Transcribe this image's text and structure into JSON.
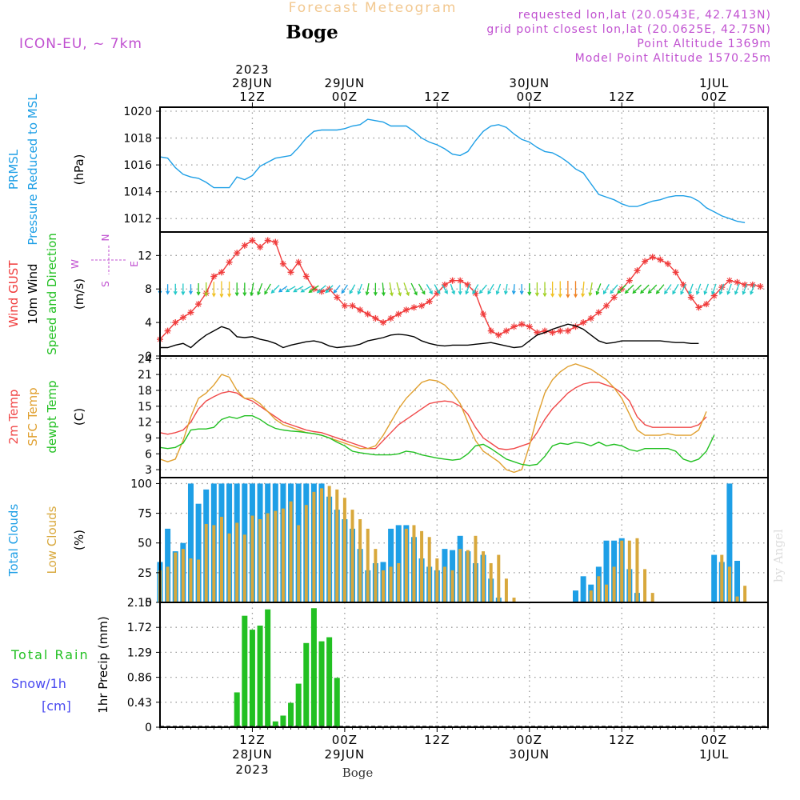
{
  "header": {
    "supertitle": "Forecast Meteogram",
    "location": "Boge",
    "model": "ICON-EU, ~ 7km",
    "requested": "requested lon,lat (20.0543E, 42.7413N)",
    "gridpoint": "grid point closest lon,lat (20.0625E, 42.75N)",
    "point_altitude": "Point Altitude 1369m",
    "model_altitude": "Model Point Altitude 1570.25m",
    "watermark": "by Angel",
    "footer": "Boge"
  },
  "colors": {
    "pressure": "#1e9fe6",
    "gust": "#f03c3c",
    "wind": "#000000",
    "temp2m": "#f04848",
    "sfc": "#e0a030",
    "dewpt": "#22c022",
    "total_clouds": "#1e9fe6",
    "low_clouds": "#d8a83c",
    "rain": "#22c022",
    "snow": "#4a4af0",
    "grid": "#9a9a9a",
    "axis_labels_purple": "#c050d0"
  },
  "time_axis": {
    "start_hour": 0,
    "end_hour": 79,
    "ticks": [
      {
        "h": 12,
        "top": "12Z",
        "date": "28JUN",
        "year": "2023"
      },
      {
        "h": 24,
        "top": "00Z",
        "date": "29JUN",
        "year": ""
      },
      {
        "h": 36,
        "top": "12Z",
        "date": "",
        "year": ""
      },
      {
        "h": 48,
        "top": "00Z",
        "date": "30JUN",
        "year": ""
      },
      {
        "h": 60,
        "top": "12Z",
        "date": "",
        "year": ""
      },
      {
        "h": 72,
        "top": "00Z",
        "date": "1JUL",
        "year": ""
      }
    ]
  },
  "compass": {
    "n": "N",
    "s": "S",
    "w": "W",
    "e": "E"
  },
  "chart_data": [
    {
      "type": "line",
      "name": "pressure",
      "title": "PRMSL Pressure Reduced to MSL",
      "ylabel_lines": [
        "PRMSL",
        "Pressure Reduced to MSL"
      ],
      "unit": "(hPa)",
      "ylim": [
        1011,
        1020.3
      ],
      "yticks": [
        1012,
        1014,
        1016,
        1018,
        1020
      ],
      "series": [
        {
          "name": "PRMSL",
          "x_start_hour": 0,
          "x_step_hour": 1,
          "values": [
            1016.6,
            1016.5,
            1015.8,
            1015.3,
            1015.1,
            1015.0,
            1014.7,
            1014.3,
            1014.3,
            1014.3,
            1015.1,
            1014.9,
            1015.2,
            1015.9,
            1016.2,
            1016.5,
            1016.6,
            1016.7,
            1017.3,
            1018.0,
            1018.5,
            1018.6,
            1018.6,
            1018.6,
            1018.7,
            1018.9,
            1019.0,
            1019.4,
            1019.3,
            1019.2,
            1018.9,
            1018.9,
            1018.9,
            1018.5,
            1018.0,
            1017.7,
            1017.5,
            1017.2,
            1016.8,
            1016.7,
            1017.0,
            1017.8,
            1018.5,
            1018.9,
            1019.0,
            1018.8,
            1018.3,
            1017.9,
            1017.7,
            1017.3,
            1017.0,
            1016.9,
            1016.6,
            1016.2,
            1015.7,
            1015.4,
            1014.6,
            1013.8,
            1013.6,
            1013.4,
            1013.1,
            1012.9,
            1012.9,
            1013.1,
            1013.3,
            1013.4,
            1013.6,
            1013.7,
            1013.7,
            1013.6,
            1013.3,
            1012.8,
            1012.5,
            1012.2,
            1012.0,
            1011.8,
            1011.7
          ]
        }
      ]
    },
    {
      "type": "line",
      "name": "wind",
      "title": "Wind GUST 10m Wind Speed and Direction",
      "ylabel_lines": [
        "Wind GUST",
        "10m Wind",
        "Speed and Direction"
      ],
      "unit": "(m/s)",
      "ylim": [
        0,
        14.8
      ],
      "yticks": [
        0,
        4,
        8,
        12
      ],
      "series": [
        {
          "name": "Wind GUST",
          "x_start_hour": 0,
          "x_step_hour": 1,
          "values": [
            2.0,
            3.0,
            4.0,
            4.6,
            5.2,
            6.2,
            7.5,
            9.5,
            10.0,
            11.2,
            12.3,
            13.2,
            13.8,
            13.0,
            13.8,
            13.6,
            11.0,
            10.0,
            11.2,
            9.5,
            8.0,
            7.7,
            8.0,
            7.0,
            6.0,
            6.0,
            5.5,
            5.0,
            4.5,
            4.0,
            4.5,
            5.0,
            5.5,
            5.8,
            6.0,
            6.5,
            7.5,
            8.5,
            9.0,
            9.0,
            8.5,
            7.5,
            5.0,
            3.0,
            2.5,
            3.0,
            3.5,
            3.8,
            3.5,
            2.8,
            3.0,
            2.8,
            3.0,
            3.0,
            3.5,
            4.0,
            4.5,
            5.2,
            6.0,
            7.0,
            8.0,
            9.0,
            10.2,
            11.3,
            11.8,
            11.5,
            11.0,
            10.0,
            8.5,
            7.0,
            5.8,
            6.2,
            7.2,
            8.2,
            9.0,
            8.8,
            8.5,
            8.5,
            8.3
          ]
        },
        {
          "name": "10m Wind",
          "x_start_hour": 0,
          "x_step_hour": 1,
          "values": [
            1.0,
            1.0,
            1.3,
            1.5,
            1.0,
            1.8,
            2.5,
            3.0,
            3.5,
            3.2,
            2.3,
            2.2,
            2.3,
            2.0,
            1.8,
            1.5,
            1.0,
            1.3,
            1.5,
            1.7,
            1.8,
            1.6,
            1.2,
            1.0,
            1.1,
            1.2,
            1.4,
            1.8,
            2.0,
            2.2,
            2.5,
            2.6,
            2.5,
            2.3,
            1.8,
            1.5,
            1.3,
            1.2,
            1.3,
            1.3,
            1.3,
            1.4,
            1.5,
            1.6,
            1.4,
            1.2,
            1.0,
            1.1,
            1.8,
            2.5,
            2.8,
            3.2,
            3.5,
            3.8,
            3.6,
            3.2,
            2.5,
            1.8,
            1.5,
            1.6,
            1.8,
            1.8,
            1.8,
            1.8,
            1.8,
            1.8,
            1.7,
            1.6,
            1.6,
            1.5,
            1.5
          ]
        }
      ],
      "arrow_row_y": 8,
      "wind_direction_deg": [
        180,
        180,
        180,
        180,
        180,
        180,
        180,
        180,
        180,
        180,
        180,
        180,
        190,
        200,
        210,
        225,
        235,
        240,
        240,
        240,
        235,
        230,
        225,
        220,
        215,
        210,
        200,
        190,
        180,
        175,
        170,
        165,
        160,
        155,
        150,
        150,
        150,
        150,
        160,
        180,
        200,
        210,
        220,
        210,
        200,
        190,
        185,
        180,
        180,
        180,
        180,
        180,
        180,
        180,
        180,
        185,
        190,
        200,
        210,
        220,
        225,
        225,
        225,
        225,
        225,
        220,
        215,
        210,
        205,
        200,
        200,
        200,
        200,
        200,
        200,
        200,
        200,
        200
      ]
    },
    {
      "type": "line",
      "name": "temperature",
      "title": "2m Temp SFC Temp dewpt Temp",
      "ylabel_lines": [
        "2m Temp",
        "SFC Temp",
        "dewpt Temp"
      ],
      "unit": "(C)",
      "ylim": [
        1.5,
        24.5
      ],
      "yticks": [
        3,
        6,
        9,
        12,
        15,
        18,
        21,
        24
      ],
      "series": [
        {
          "name": "2m Temp",
          "x_start_hour": 0,
          "x_step_hour": 1,
          "values": [
            10.0,
            9.7,
            10.0,
            10.5,
            12.0,
            14.5,
            16.0,
            16.8,
            17.5,
            17.8,
            17.5,
            16.5,
            16.0,
            15.0,
            14.0,
            13.0,
            12.0,
            11.5,
            11.0,
            10.5,
            10.2,
            10.0,
            9.5,
            9.0,
            8.5,
            8.0,
            7.5,
            7.0,
            7.0,
            8.5,
            10.0,
            11.5,
            12.5,
            13.5,
            14.5,
            15.5,
            15.8,
            16.0,
            15.8,
            15.0,
            13.5,
            11.0,
            9.0,
            8.0,
            7.0,
            6.8,
            7.0,
            7.5,
            8.0,
            10.0,
            12.5,
            14.5,
            16.0,
            17.5,
            18.5,
            19.2,
            19.5,
            19.5,
            19.0,
            18.5,
            17.5,
            16.0,
            13.0,
            11.5,
            11.0,
            11.0,
            11.0,
            11.0,
            11.0,
            11.0,
            11.5,
            13.0
          ]
        },
        {
          "name": "SFC Temp",
          "x_start_hour": 0,
          "x_step_hour": 1,
          "values": [
            5.0,
            4.5,
            5.0,
            8.5,
            13.0,
            16.5,
            17.5,
            19.0,
            21.0,
            20.5,
            18.0,
            16.5,
            16.5,
            15.5,
            14.0,
            12.5,
            11.5,
            11.0,
            10.5,
            10.0,
            9.8,
            9.5,
            9.0,
            8.5,
            8.0,
            7.5,
            7.0,
            7.0,
            7.5,
            9.5,
            12.0,
            14.5,
            16.5,
            18.0,
            19.5,
            20.0,
            19.8,
            19.0,
            17.5,
            15.5,
            12.0,
            8.5,
            6.5,
            5.5,
            4.5,
            3.0,
            2.5,
            3.0,
            7.5,
            13.0,
            17.5,
            20.0,
            21.5,
            22.5,
            23.0,
            22.5,
            22.0,
            21.0,
            20.0,
            18.5,
            16.5,
            13.5,
            10.5,
            9.5,
            9.5,
            9.5,
            9.8,
            9.5,
            9.5,
            9.5,
            10.5,
            14.0
          ]
        },
        {
          "name": "dewpt Temp",
          "x_start_hour": 0,
          "x_step_hour": 1,
          "values": [
            7.2,
            7.0,
            7.2,
            8.0,
            10.5,
            10.7,
            10.7,
            11.0,
            12.5,
            13.0,
            12.7,
            13.2,
            13.2,
            12.5,
            11.5,
            10.8,
            10.5,
            10.3,
            10.2,
            10.0,
            9.8,
            9.5,
            9.0,
            8.2,
            7.5,
            6.5,
            6.2,
            6.0,
            5.8,
            5.8,
            5.8,
            6.0,
            6.5,
            6.3,
            5.8,
            5.5,
            5.2,
            5.0,
            4.8,
            5.0,
            6.0,
            7.5,
            7.8,
            7.0,
            6.0,
            5.0,
            4.5,
            4.0,
            3.8,
            4.0,
            5.5,
            7.5,
            8.0,
            7.8,
            8.2,
            8.0,
            7.5,
            8.2,
            7.5,
            7.8,
            7.5,
            6.8,
            6.5,
            7.0,
            7.0,
            7.0,
            7.0,
            6.5,
            5.0,
            4.5,
            5.0,
            6.5,
            9.5
          ]
        }
      ]
    },
    {
      "type": "bar",
      "name": "clouds",
      "title": "Total Clouds Low Clouds",
      "ylabel_lines": [
        "Total Clouds",
        "Low Clouds"
      ],
      "unit": "(%)",
      "ylim": [
        0,
        105
      ],
      "yticks": [
        0,
        25,
        50,
        75,
        100
      ],
      "series": [
        {
          "name": "Total Clouds",
          "x_start_hour": 0,
          "x_step_hour": 1,
          "values": [
            34,
            62,
            43,
            50,
            100,
            83,
            95,
            100,
            100,
            100,
            100,
            100,
            100,
            100,
            100,
            100,
            100,
            100,
            100,
            100,
            100,
            100,
            89,
            78,
            70,
            62,
            45,
            27,
            33,
            34,
            62,
            65,
            65,
            55,
            37,
            30,
            27,
            45,
            44,
            56,
            43,
            33,
            40,
            20,
            4,
            0,
            0,
            0,
            0,
            0,
            0,
            0,
            0,
            0,
            10,
            22,
            15,
            30,
            52,
            52,
            54,
            28,
            8,
            0,
            0,
            0,
            0,
            0,
            0,
            0,
            0,
            0,
            40,
            34,
            100,
            35
          ]
        },
        {
          "name": "Low Clouds",
          "x_start_hour": 0,
          "x_step_hour": 1,
          "values": [
            27,
            30,
            42,
            45,
            37,
            36,
            66,
            65,
            72,
            58,
            67,
            57,
            73,
            70,
            75,
            77,
            79,
            85,
            65,
            82,
            93,
            96,
            98,
            95,
            88,
            78,
            70,
            62,
            45,
            27,
            30,
            33,
            62,
            65,
            60,
            55,
            37,
            30,
            27,
            45,
            44,
            56,
            43,
            33,
            40,
            20,
            4,
            0,
            0,
            0,
            0,
            0,
            0,
            0,
            0,
            0,
            10,
            22,
            15,
            30,
            52,
            52,
            54,
            28,
            8,
            0,
            0,
            0,
            0,
            0,
            0,
            0,
            0,
            40,
            30,
            5,
            14
          ]
        }
      ]
    },
    {
      "type": "bar",
      "name": "precip",
      "title": "1hr Precip (mm)",
      "ylabel_lines": [
        "1hr Precip (mm)"
      ],
      "side_labels": [
        "Total Rain",
        "Snow/1h",
        "[cm]"
      ],
      "ylim": [
        0,
        2.15
      ],
      "yticks": [
        0,
        0.43,
        0.86,
        1.29,
        1.72,
        2.15
      ],
      "ytick_labels": [
        "0",
        "0.43",
        "0.86",
        "1.29",
        "1.72",
        "2.15"
      ],
      "series": [
        {
          "name": "Total Rain",
          "x_start_hour": 0,
          "x_step_hour": 1,
          "values": [
            0,
            0,
            0,
            0,
            0,
            0,
            0,
            0,
            0,
            0.01,
            0.6,
            1.92,
            1.68,
            1.75,
            2.03,
            0.1,
            0.2,
            0.42,
            0.75,
            1.45,
            2.05,
            1.48,
            1.55,
            0.85,
            0,
            0,
            0,
            0,
            0,
            0,
            0,
            0,
            0,
            0,
            0,
            0,
            0,
            0,
            0,
            0,
            0,
            0,
            0,
            0,
            0,
            0,
            0,
            0,
            0,
            0,
            0,
            0,
            0,
            0,
            0,
            0,
            0,
            0,
            0,
            0,
            0,
            0,
            0,
            0,
            0,
            0,
            0,
            0,
            0,
            0,
            0,
            0,
            0,
            0,
            0,
            0,
            0,
            0
          ]
        }
      ]
    }
  ]
}
